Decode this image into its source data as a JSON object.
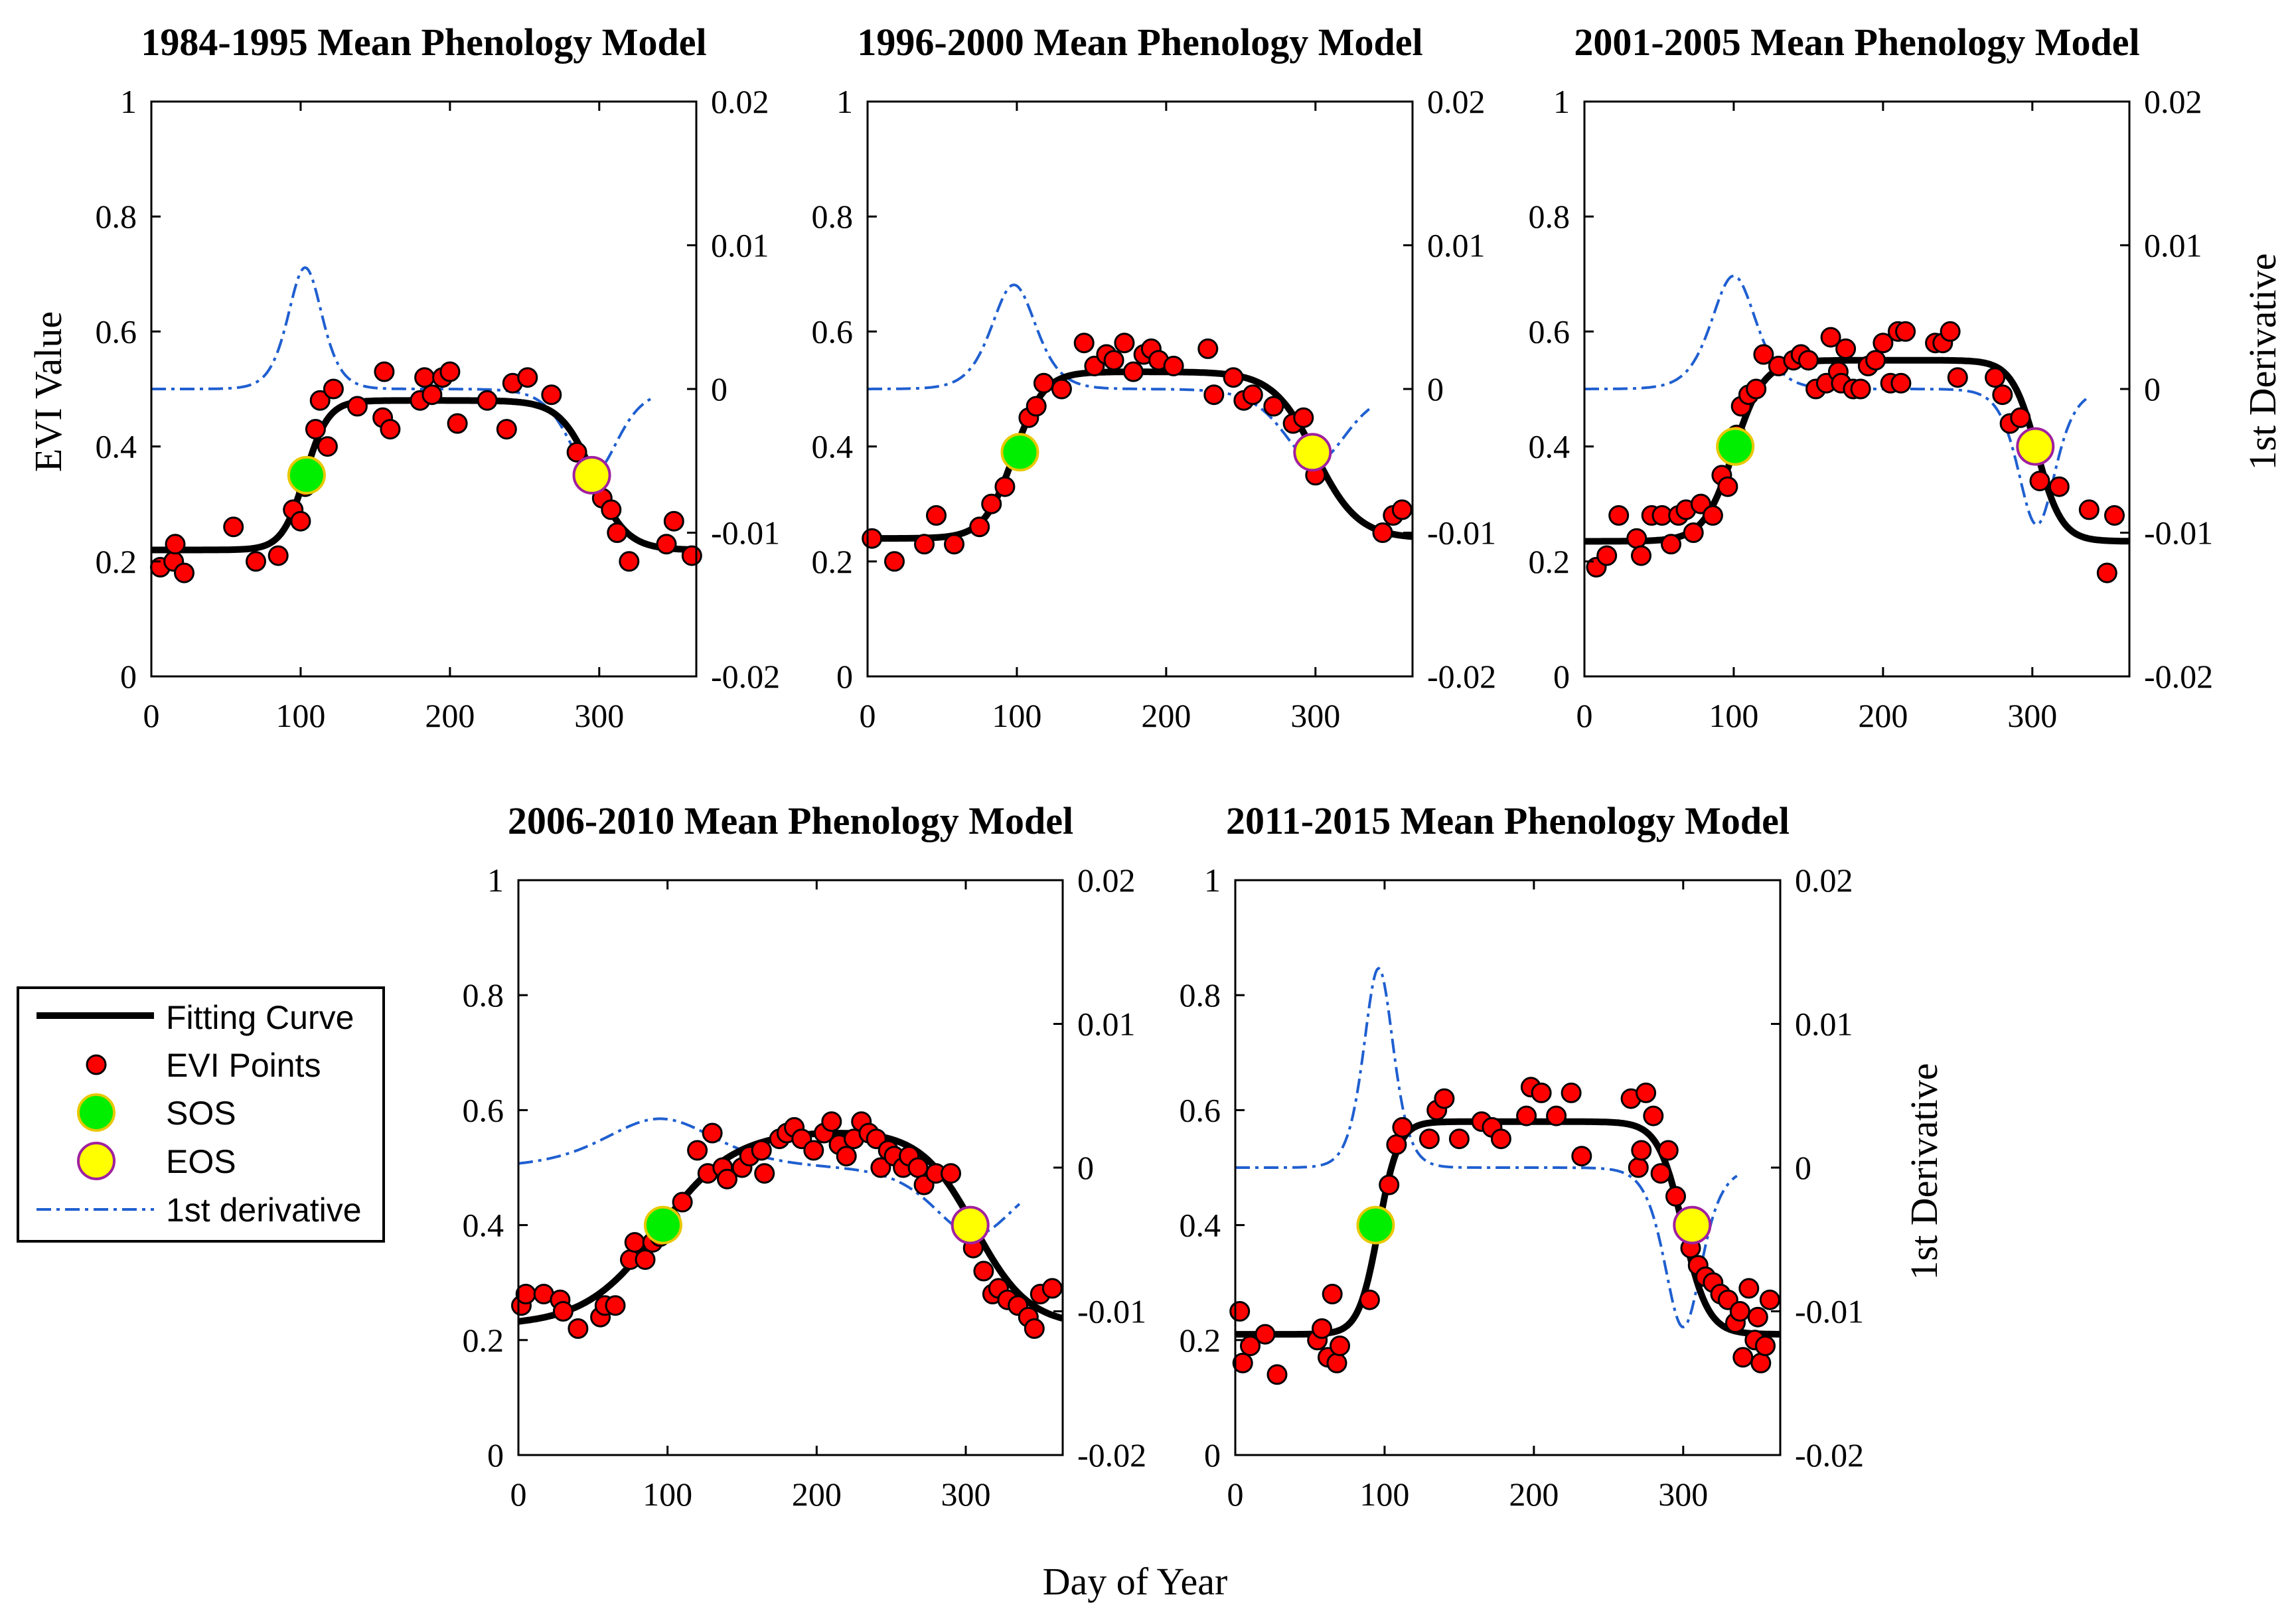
{
  "figure": {
    "xlabel": "Day of Year",
    "ylabel_left": "EVI Value",
    "ylabel_right": "1st Derivative"
  },
  "legend": {
    "items": [
      {
        "key": "fit",
        "label": "Fitting Curve"
      },
      {
        "key": "points",
        "label": "EVI Points"
      },
      {
        "key": "sos",
        "label": "SOS"
      },
      {
        "key": "eos",
        "label": "EOS"
      },
      {
        "key": "deriv",
        "label": "1st derivative"
      }
    ]
  },
  "colors": {
    "fit": "#000000",
    "points": "#ff0000",
    "sos": "#00ee00",
    "eos": "#ffff00",
    "eos_edge": "#a020a0",
    "sos_edge": "#e8c800",
    "deriv": "#1f5fd0"
  },
  "chart_data": [
    {
      "type": "scatter",
      "title": "1984-1995 Mean Phenology Model",
      "xlabel": "Day of Year",
      "ylabel": "EVI Value",
      "y2label": "1st Derivative",
      "xlim": [
        0,
        365
      ],
      "ylim": [
        0,
        1
      ],
      "y2lim": [
        -0.02,
        0.02
      ],
      "xticks": [
        0,
        100,
        200,
        300
      ],
      "yticks": [
        0,
        0.2,
        0.4,
        0.6,
        0.8,
        1
      ],
      "y2ticks": [
        -0.02,
        -0.01,
        0,
        0.01,
        0.02
      ],
      "y2ticklabels": [
        "-0.02",
        "-0.01",
        "0",
        "0.01",
        "0.02"
      ],
      "fit": {
        "base": 0.22,
        "amp": 0.26,
        "sos": 103,
        "k1": 0.13,
        "eos": 296,
        "k2": 0.09
      },
      "sos_point": {
        "x": 104,
        "y": 0.35
      },
      "eos_point": {
        "x": 295,
        "y": 0.35
      },
      "points": [
        [
          6,
          0.19
        ],
        [
          15,
          0.2
        ],
        [
          16,
          0.23
        ],
        [
          22,
          0.18
        ],
        [
          55,
          0.26
        ],
        [
          70,
          0.2
        ],
        [
          85,
          0.21
        ],
        [
          95,
          0.29
        ],
        [
          100,
          0.27
        ],
        [
          103,
          0.33
        ],
        [
          110,
          0.43
        ],
        [
          113,
          0.48
        ],
        [
          118,
          0.4
        ],
        [
          122,
          0.5
        ],
        [
          138,
          0.47
        ],
        [
          155,
          0.45
        ],
        [
          156,
          0.53
        ],
        [
          160,
          0.43
        ],
        [
          180,
          0.48
        ],
        [
          183,
          0.52
        ],
        [
          188,
          0.49
        ],
        [
          195,
          0.52
        ],
        [
          200,
          0.53
        ],
        [
          205,
          0.44
        ],
        [
          225,
          0.48
        ],
        [
          238,
          0.43
        ],
        [
          242,
          0.51
        ],
        [
          252,
          0.52
        ],
        [
          268,
          0.49
        ],
        [
          285,
          0.39
        ],
        [
          302,
          0.31
        ],
        [
          308,
          0.29
        ],
        [
          312,
          0.25
        ],
        [
          320,
          0.2
        ],
        [
          345,
          0.23
        ],
        [
          350,
          0.27
        ],
        [
          362,
          0.21
        ]
      ]
    },
    {
      "type": "scatter",
      "title": "1996-2000 Mean Phenology Model",
      "xlabel": "Day of Year",
      "ylabel": "EVI Value",
      "y2label": "1st Derivative",
      "xlim": [
        0,
        365
      ],
      "ylim": [
        0,
        1
      ],
      "y2lim": [
        -0.02,
        0.02
      ],
      "xticks": [
        0,
        100,
        200,
        300
      ],
      "yticks": [
        0,
        0.2,
        0.4,
        0.6,
        0.8,
        1
      ],
      "y2ticks": [
        -0.02,
        -0.01,
        0,
        0.01,
        0.02
      ],
      "y2ticklabels": [
        "-0.02",
        "-0.01",
        "0",
        "0.01",
        "0.02"
      ],
      "fit": {
        "base": 0.24,
        "amp": 0.29,
        "sos": 98,
        "k1": 0.1,
        "eos": 300,
        "k2": 0.07
      },
      "sos_point": {
        "x": 102,
        "y": 0.39
      },
      "eos_point": {
        "x": 298,
        "y": 0.39
      },
      "points": [
        [
          3,
          0.24
        ],
        [
          18,
          0.2
        ],
        [
          38,
          0.23
        ],
        [
          46,
          0.28
        ],
        [
          58,
          0.23
        ],
        [
          75,
          0.26
        ],
        [
          83,
          0.3
        ],
        [
          92,
          0.33
        ],
        [
          102,
          0.39
        ],
        [
          108,
          0.45
        ],
        [
          113,
          0.47
        ],
        [
          118,
          0.51
        ],
        [
          130,
          0.5
        ],
        [
          145,
          0.58
        ],
        [
          152,
          0.54
        ],
        [
          160,
          0.56
        ],
        [
          165,
          0.55
        ],
        [
          172,
          0.58
        ],
        [
          178,
          0.53
        ],
        [
          185,
          0.56
        ],
        [
          190,
          0.57
        ],
        [
          195,
          0.55
        ],
        [
          205,
          0.54
        ],
        [
          228,
          0.57
        ],
        [
          232,
          0.49
        ],
        [
          245,
          0.52
        ],
        [
          252,
          0.48
        ],
        [
          258,
          0.49
        ],
        [
          272,
          0.47
        ],
        [
          285,
          0.44
        ],
        [
          292,
          0.45
        ],
        [
          300,
          0.35
        ],
        [
          302,
          0.38
        ],
        [
          345,
          0.25
        ],
        [
          352,
          0.28
        ],
        [
          358,
          0.29
        ]
      ]
    },
    {
      "type": "scatter",
      "title": "2001-2005 Mean Phenology Model",
      "xlabel": "Day of Year",
      "ylabel": "EVI Value",
      "y2label": "1st Derivative",
      "xlim": [
        0,
        365
      ],
      "ylim": [
        0,
        1
      ],
      "y2lim": [
        -0.02,
        0.02
      ],
      "xticks": [
        0,
        100,
        200,
        300
      ],
      "yticks": [
        0,
        0.2,
        0.4,
        0.6,
        0.8,
        1
      ],
      "y2ticks": [
        -0.02,
        -0.01,
        0,
        0.01,
        0.02
      ],
      "y2ticklabels": [
        "-0.02",
        "-0.01",
        "0",
        "0.01",
        "0.02"
      ],
      "fit": {
        "base": 0.235,
        "amp": 0.315,
        "sos": 100,
        "k1": 0.1,
        "eos": 303,
        "k2": 0.12
      },
      "sos_point": {
        "x": 101,
        "y": 0.4
      },
      "eos_point": {
        "x": 302,
        "y": 0.4
      },
      "points": [
        [
          8,
          0.19
        ],
        [
          15,
          0.21
        ],
        [
          23,
          0.28
        ],
        [
          35,
          0.24
        ],
        [
          38,
          0.21
        ],
        [
          45,
          0.28
        ],
        [
          52,
          0.28
        ],
        [
          58,
          0.23
        ],
        [
          63,
          0.28
        ],
        [
          68,
          0.29
        ],
        [
          73,
          0.25
        ],
        [
          78,
          0.3
        ],
        [
          86,
          0.28
        ],
        [
          92,
          0.35
        ],
        [
          96,
          0.33
        ],
        [
          102,
          0.42
        ],
        [
          105,
          0.47
        ],
        [
          110,
          0.49
        ],
        [
          115,
          0.5
        ],
        [
          120,
          0.56
        ],
        [
          130,
          0.54
        ],
        [
          140,
          0.55
        ],
        [
          145,
          0.56
        ],
        [
          150,
          0.55
        ],
        [
          155,
          0.5
        ],
        [
          162,
          0.51
        ],
        [
          165,
          0.59
        ],
        [
          170,
          0.53
        ],
        [
          172,
          0.51
        ],
        [
          175,
          0.57
        ],
        [
          180,
          0.5
        ],
        [
          185,
          0.5
        ],
        [
          190,
          0.54
        ],
        [
          195,
          0.55
        ],
        [
          200,
          0.58
        ],
        [
          205,
          0.51
        ],
        [
          210,
          0.6
        ],
        [
          212,
          0.51
        ],
        [
          215,
          0.6
        ],
        [
          235,
          0.58
        ],
        [
          240,
          0.58
        ],
        [
          245,
          0.6
        ],
        [
          250,
          0.52
        ],
        [
          275,
          0.52
        ],
        [
          280,
          0.49
        ],
        [
          285,
          0.44
        ],
        [
          292,
          0.45
        ],
        [
          305,
          0.34
        ],
        [
          318,
          0.33
        ],
        [
          338,
          0.29
        ],
        [
          350,
          0.18
        ],
        [
          355,
          0.28
        ]
      ]
    },
    {
      "type": "scatter",
      "title": "2006-2010 Mean Phenology Model",
      "xlabel": "Day of Year",
      "ylabel": "EVI Value",
      "y2label": "1st Derivative",
      "xlim": [
        0,
        365
      ],
      "ylim": [
        0,
        1
      ],
      "y2lim": [
        -0.02,
        0.02
      ],
      "xticks": [
        0,
        100,
        200,
        300
      ],
      "yticks": [
        0,
        0.2,
        0.4,
        0.6,
        0.8,
        1
      ],
      "y2ticks": [
        -0.02,
        -0.01,
        0,
        0.01,
        0.02
      ],
      "y2ticklabels": [
        "-0.02",
        "-0.01",
        "0",
        "0.01",
        "0.02"
      ],
      "fit": {
        "base": 0.225,
        "amp": 0.34,
        "sos": 95,
        "k1": 0.04,
        "eos": 306,
        "k2": 0.055
      },
      "sos_point": {
        "x": 97,
        "y": 0.4
      },
      "eos_point": {
        "x": 303,
        "y": 0.4
      },
      "points": [
        [
          2,
          0.26
        ],
        [
          5,
          0.28
        ],
        [
          17,
          0.28
        ],
        [
          28,
          0.27
        ],
        [
          30,
          0.25
        ],
        [
          40,
          0.22
        ],
        [
          55,
          0.24
        ],
        [
          58,
          0.26
        ],
        [
          65,
          0.26
        ],
        [
          75,
          0.34
        ],
        [
          78,
          0.37
        ],
        [
          85,
          0.34
        ],
        [
          90,
          0.37
        ],
        [
          95,
          0.38
        ],
        [
          102,
          0.41
        ],
        [
          110,
          0.44
        ],
        [
          120,
          0.53
        ],
        [
          127,
          0.49
        ],
        [
          130,
          0.56
        ],
        [
          137,
          0.5
        ],
        [
          140,
          0.48
        ],
        [
          150,
          0.5
        ],
        [
          155,
          0.52
        ],
        [
          163,
          0.53
        ],
        [
          165,
          0.49
        ],
        [
          175,
          0.55
        ],
        [
          180,
          0.56
        ],
        [
          185,
          0.57
        ],
        [
          190,
          0.55
        ],
        [
          198,
          0.53
        ],
        [
          205,
          0.56
        ],
        [
          210,
          0.58
        ],
        [
          215,
          0.54
        ],
        [
          220,
          0.52
        ],
        [
          225,
          0.55
        ],
        [
          230,
          0.58
        ],
        [
          235,
          0.56
        ],
        [
          240,
          0.55
        ],
        [
          243,
          0.5
        ],
        [
          248,
          0.53
        ],
        [
          252,
          0.52
        ],
        [
          258,
          0.5
        ],
        [
          262,
          0.52
        ],
        [
          268,
          0.5
        ],
        [
          272,
          0.47
        ],
        [
          280,
          0.49
        ],
        [
          290,
          0.49
        ],
        [
          300,
          0.41
        ],
        [
          305,
          0.36
        ],
        [
          312,
          0.32
        ],
        [
          318,
          0.28
        ],
        [
          322,
          0.29
        ],
        [
          328,
          0.27
        ],
        [
          335,
          0.26
        ],
        [
          342,
          0.24
        ],
        [
          346,
          0.22
        ],
        [
          350,
          0.28
        ],
        [
          358,
          0.29
        ]
      ]
    },
    {
      "type": "scatter",
      "title": "2011-2015 Mean Phenology Model",
      "xlabel": "Day of Year",
      "ylabel": "EVI Value",
      "y2label": "1st Derivative",
      "xlim": [
        0,
        365
      ],
      "ylim": [
        0,
        1
      ],
      "y2lim": [
        -0.02,
        0.02
      ],
      "xticks": [
        0,
        100,
        200,
        300
      ],
      "yticks": [
        0,
        0.2,
        0.4,
        0.6,
        0.8,
        1
      ],
      "y2ticks": [
        -0.02,
        -0.01,
        0,
        0.01,
        0.02
      ],
      "y2ticklabels": [
        "-0.02",
        "-0.01",
        "0",
        "0.01",
        "0.02"
      ],
      "fit": {
        "base": 0.21,
        "amp": 0.37,
        "sos": 96,
        "k1": 0.15,
        "eos": 300,
        "k2": 0.12
      },
      "sos_point": {
        "x": 94,
        "y": 0.4
      },
      "eos_point": {
        "x": 306,
        "y": 0.4
      },
      "points": [
        [
          3,
          0.25
        ],
        [
          5,
          0.16
        ],
        [
          10,
          0.19
        ],
        [
          20,
          0.21
        ],
        [
          28,
          0.14
        ],
        [
          55,
          0.2
        ],
        [
          58,
          0.22
        ],
        [
          62,
          0.17
        ],
        [
          65,
          0.28
        ],
        [
          68,
          0.16
        ],
        [
          70,
          0.19
        ],
        [
          90,
          0.27
        ],
        [
          98,
          0.4
        ],
        [
          103,
          0.47
        ],
        [
          108,
          0.54
        ],
        [
          112,
          0.57
        ],
        [
          130,
          0.55
        ],
        [
          135,
          0.6
        ],
        [
          140,
          0.62
        ],
        [
          150,
          0.55
        ],
        [
          165,
          0.58
        ],
        [
          172,
          0.57
        ],
        [
          178,
          0.55
        ],
        [
          195,
          0.59
        ],
        [
          198,
          0.64
        ],
        [
          205,
          0.63
        ],
        [
          215,
          0.59
        ],
        [
          225,
          0.63
        ],
        [
          232,
          0.52
        ],
        [
          265,
          0.62
        ],
        [
          270,
          0.5
        ],
        [
          272,
          0.53
        ],
        [
          275,
          0.63
        ],
        [
          280,
          0.59
        ],
        [
          285,
          0.49
        ],
        [
          290,
          0.53
        ],
        [
          295,
          0.45
        ],
        [
          305,
          0.36
        ],
        [
          310,
          0.33
        ],
        [
          315,
          0.31
        ],
        [
          320,
          0.3
        ],
        [
          325,
          0.28
        ],
        [
          330,
          0.27
        ],
        [
          335,
          0.23
        ],
        [
          338,
          0.25
        ],
        [
          340,
          0.17
        ],
        [
          344,
          0.29
        ],
        [
          348,
          0.2
        ],
        [
          350,
          0.24
        ],
        [
          352,
          0.16
        ],
        [
          355,
          0.19
        ],
        [
          358,
          0.27
        ]
      ]
    }
  ]
}
